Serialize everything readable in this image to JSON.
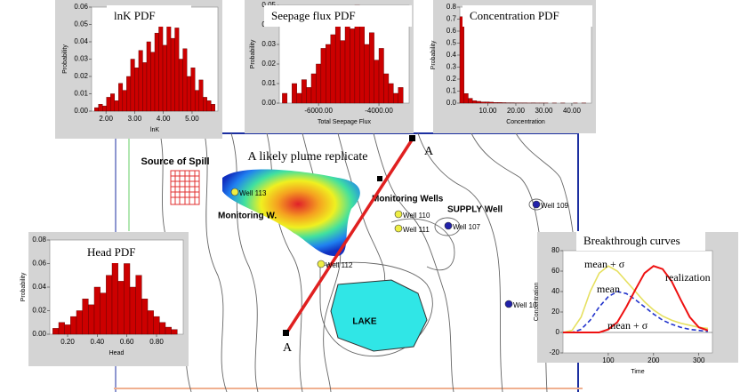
{
  "chart_data": [
    {
      "type": "histogram",
      "title": "lnK PDF",
      "x_label": "lnK",
      "y_label": "Probability",
      "color": "#cc0000",
      "bins": [
        1.6,
        1.74,
        1.88,
        2.02,
        2.16,
        2.3,
        2.44,
        2.58,
        2.72,
        2.86,
        3.0,
        3.14,
        3.28,
        3.42,
        3.56,
        3.7,
        3.84,
        3.98,
        4.12,
        4.26,
        4.4,
        4.54,
        4.68,
        4.82,
        4.96,
        5.1,
        5.24,
        5.38,
        5.52,
        5.66,
        5.8
      ],
      "values": [
        0.002,
        0.004,
        0.003,
        0.008,
        0.01,
        0.006,
        0.016,
        0.012,
        0.02,
        0.03,
        0.025,
        0.035,
        0.028,
        0.04,
        0.034,
        0.045,
        0.05,
        0.038,
        0.055,
        0.042,
        0.048,
        0.03,
        0.036,
        0.02,
        0.025,
        0.012,
        0.018,
        0.008,
        0.006,
        0.004
      ],
      "xlim": [
        1.5,
        5.9
      ],
      "ylim": [
        0,
        0.06
      ],
      "xticks": [
        {
          "value": 2,
          "label": "2.00"
        },
        {
          "value": 3,
          "label": "3.00"
        },
        {
          "value": 4,
          "label": "4.00"
        },
        {
          "value": 5,
          "label": "5.00"
        }
      ],
      "yticks": [
        {
          "value": 0,
          "label": "0.00"
        },
        0.01,
        0.02,
        0.03,
        0.04,
        0.05,
        0.06
      ]
    },
    {
      "type": "histogram",
      "title": "Seepage flux PDF",
      "x_label": "Total Seepage Flux",
      "y_label": "Probability",
      "color": "#cc0000",
      "bins": [
        -7200,
        -7040,
        -6880,
        -6720,
        -6560,
        -6400,
        -6240,
        -6080,
        -5920,
        -5760,
        -5600,
        -5440,
        -5280,
        -5120,
        -4960,
        -4800,
        -4640,
        -4480,
        -4320,
        -4160,
        -4000,
        -3840,
        -3680,
        -3520,
        -3360,
        -3200
      ],
      "values": [
        0.005,
        0,
        0.01,
        0.005,
        0.012,
        0.008,
        0.015,
        0.02,
        0.028,
        0.03,
        0.035,
        0.04,
        0.032,
        0.045,
        0.038,
        0.05,
        0.042,
        0.03,
        0.036,
        0.022,
        0.028,
        0.015,
        0.01,
        0.005,
        0.008
      ],
      "xlim": [
        -7300,
        -3000
      ],
      "ylim": [
        0,
        0.05
      ],
      "xticks": [
        {
          "value": -6000,
          "label": "-6000.00"
        },
        {
          "value": -4000,
          "label": "-4000.00"
        }
      ],
      "yticks": [
        {
          "value": 0,
          "label": "0.00"
        },
        0.01,
        0.02,
        0.03,
        0.04,
        0.05
      ]
    },
    {
      "type": "histogram",
      "title": "Concentration PDF",
      "x_label": "Concentration",
      "y_label": "Probability",
      "color": "#cc0000",
      "bins": [
        0,
        1.5,
        3,
        4.5,
        6,
        7.5,
        9,
        10.5,
        12,
        13.5,
        15,
        16.5,
        18,
        19.5,
        21,
        22.5,
        24,
        25.5,
        27,
        28.5,
        30,
        31.5,
        33,
        34.5,
        36,
        37.5,
        39,
        40.5,
        42,
        43.5,
        45
      ],
      "values": [
        0.72,
        0.08,
        0.04,
        0.02,
        0.015,
        0.01,
        0.01,
        0.008,
        0.005,
        0.005,
        0.004,
        0.003,
        0.003,
        0.002,
        0.002,
        0.002,
        0.001,
        0.002,
        0.001,
        0.001,
        0.001,
        0,
        0.001,
        0,
        0.001,
        0,
        0,
        0.001,
        0,
        0.001
      ],
      "xlim": [
        0,
        47
      ],
      "ylim": [
        0,
        0.8
      ],
      "xticks": [
        {
          "value": 10,
          "label": "10.00"
        },
        {
          "value": 20,
          "label": "20.00"
        },
        {
          "value": 30,
          "label": "30.00"
        },
        {
          "value": 40,
          "label": "40.00"
        }
      ],
      "yticks": [
        {
          "value": 0,
          "label": "0.0"
        },
        0.1,
        0.2,
        0.3,
        0.4,
        0.5,
        0.6,
        0.7,
        0.8
      ]
    },
    {
      "type": "histogram",
      "title": "Head PDF",
      "x_label": "Head",
      "y_label": "Probability",
      "color": "#cc0000",
      "bins": [
        0.1,
        0.14,
        0.18,
        0.22,
        0.26,
        0.3,
        0.34,
        0.38,
        0.42,
        0.46,
        0.5,
        0.54,
        0.58,
        0.62,
        0.66,
        0.7,
        0.74,
        0.78,
        0.82,
        0.86,
        0.9,
        0.94
      ],
      "values": [
        0.005,
        0.01,
        0.008,
        0.015,
        0.02,
        0.03,
        0.025,
        0.04,
        0.035,
        0.05,
        0.07,
        0.045,
        0.06,
        0.04,
        0.05,
        0.03,
        0.02,
        0.015,
        0.01,
        0.006,
        0.004
      ],
      "xlim": [
        0.08,
        0.98
      ],
      "ylim": [
        0,
        0.08
      ],
      "xticks": [
        {
          "value": 0.2,
          "label": "0.20"
        },
        {
          "value": 0.4,
          "label": "0.40"
        },
        {
          "value": 0.6,
          "label": "0.60"
        },
        {
          "value": 0.8,
          "label": "0.80"
        }
      ],
      "yticks": [
        {
          "value": 0,
          "label": "0.00"
        },
        0.02,
        0.04,
        0.06,
        0.08
      ]
    },
    {
      "type": "line",
      "title": "Breakthrough curves",
      "x_label": "Time",
      "y_label": "Concentration",
      "x": [
        0,
        20,
        40,
        60,
        80,
        100,
        120,
        140,
        160,
        180,
        200,
        220,
        240,
        260,
        280,
        300,
        320
      ],
      "series": [
        {
          "color": "#e6e060",
          "dash": false,
          "values": [
            0,
            2,
            15,
            40,
            58,
            65,
            60,
            50,
            40,
            30,
            22,
            16,
            12,
            9,
            7,
            5,
            4
          ]
        },
        {
          "color": "#2233cc",
          "dash": true,
          "values": [
            0,
            0,
            3,
            12,
            25,
            35,
            40,
            38,
            32,
            25,
            18,
            12,
            8,
            5,
            3,
            2,
            1
          ]
        },
        {
          "color": "#ee1111",
          "dash": false,
          "values": [
            0,
            0,
            0,
            0,
            0,
            3,
            10,
            25,
            42,
            58,
            65,
            62,
            50,
            32,
            15,
            5,
            2
          ]
        }
      ],
      "annotations": [
        "mean + σ",
        "mean",
        "realization",
        "mean + σ"
      ],
      "xlim": [
        0,
        330
      ],
      "ylim": [
        -20,
        80
      ],
      "xticks": [
        100,
        200,
        300
      ],
      "yticks": [
        -20,
        0,
        20,
        40,
        60,
        80
      ]
    }
  ],
  "map": {
    "source": "Source of Spill",
    "plume": "A likely plume replicate",
    "monitoring_w": "Monitoring W.",
    "monitoring_wells": "Monitoring Wells",
    "supply": "SUPPLY Well",
    "lake": "LAKE",
    "end_a": "A",
    "end_b": "A",
    "wells": [
      "Well 113",
      "Well 110",
      "Well 111",
      "Well 107",
      "Well 109",
      "Well 112",
      "Well 105"
    ]
  }
}
